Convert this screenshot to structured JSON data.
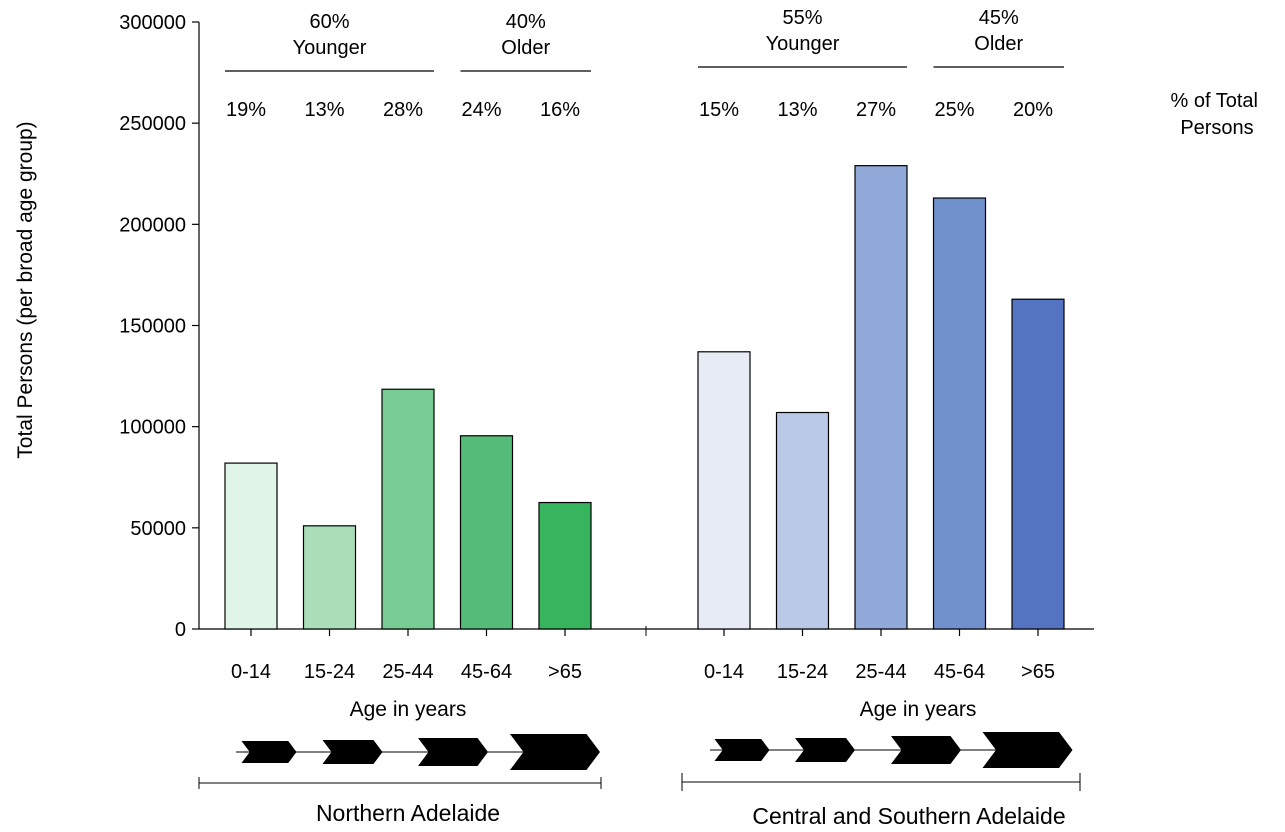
{
  "chart_data": {
    "type": "bar",
    "ylabel": "Total Persons (per broad age group)",
    "xlabel": "Age in years",
    "ylim": [
      0,
      300000
    ],
    "yticks": [
      0,
      50000,
      100000,
      150000,
      200000,
      250000,
      300000
    ],
    "pct_header": "% of Total Persons",
    "pct_header_lines": [
      "% of Total",
      "Persons"
    ],
    "groups": [
      {
        "region": "Northern Adelaide",
        "xlabel": "Age in years",
        "categories": [
          "0-14",
          "15-24",
          "25-44",
          "45-64",
          ">65"
        ],
        "values": [
          82000,
          51000,
          118500,
          95500,
          62500
        ],
        "percents": [
          "19%",
          "13%",
          "28%",
          "24%",
          "16%"
        ],
        "colors": [
          "#e1f4e8",
          "#aadeb8",
          "#79cc94",
          "#55bb78",
          "#36b45e"
        ],
        "summary": [
          {
            "percent": "60%",
            "label": "Younger",
            "span": [
              0,
              2
            ]
          },
          {
            "percent": "40%",
            "label": "Older",
            "span": [
              3,
              4
            ]
          }
        ]
      },
      {
        "region": "Central and Southern Adelaide",
        "xlabel": "Age in years",
        "categories": [
          "0-14",
          "15-24",
          "25-44",
          "45-64",
          ">65"
        ],
        "values": [
          137000,
          107000,
          229000,
          213000,
          163000
        ],
        "percents": [
          "15%",
          "13%",
          "27%",
          "25%",
          "20%"
        ],
        "colors": [
          "#e6ebf6",
          "#b9c9e7",
          "#90a9d8",
          "#7191cd",
          "#5473c0"
        ],
        "summary": [
          {
            "percent": "55%",
            "label": "Younger",
            "span": [
              0,
              2
            ]
          },
          {
            "percent": "45%",
            "label": "Older",
            "span": [
              3,
              4
            ]
          }
        ]
      }
    ]
  }
}
